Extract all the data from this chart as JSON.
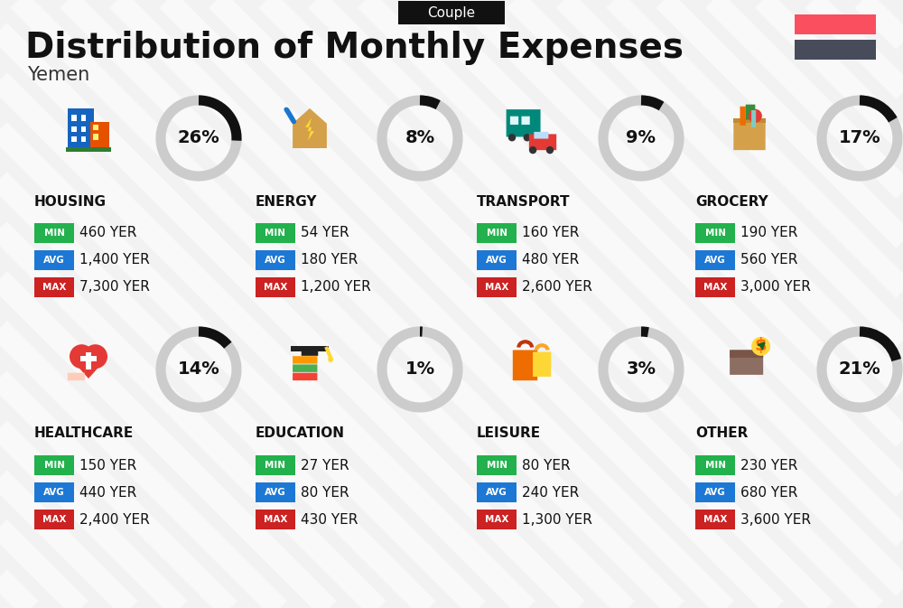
{
  "title": "Distribution of Monthly Expenses",
  "subtitle": "Yemen",
  "tag": "Couple",
  "bg_color": "#f2f2f2",
  "flag_color1": "#f94f5e",
  "flag_color2": "#474b5a",
  "categories": [
    {
      "name": "HOUSING",
      "pct": 26,
      "min_val": "460 YER",
      "avg_val": "1,400 YER",
      "max_val": "7,300 YER",
      "row": 0,
      "col": 0
    },
    {
      "name": "ENERGY",
      "pct": 8,
      "min_val": "54 YER",
      "avg_val": "180 YER",
      "max_val": "1,200 YER",
      "row": 0,
      "col": 1
    },
    {
      "name": "TRANSPORT",
      "pct": 9,
      "min_val": "160 YER",
      "avg_val": "480 YER",
      "max_val": "2,600 YER",
      "row": 0,
      "col": 2
    },
    {
      "name": "GROCERY",
      "pct": 17,
      "min_val": "190 YER",
      "avg_val": "560 YER",
      "max_val": "3,000 YER",
      "row": 0,
      "col": 3
    },
    {
      "name": "HEALTHCARE",
      "pct": 14,
      "min_val": "150 YER",
      "avg_val": "440 YER",
      "max_val": "2,400 YER",
      "row": 1,
      "col": 0
    },
    {
      "name": "EDUCATION",
      "pct": 1,
      "min_val": "27 YER",
      "avg_val": "80 YER",
      "max_val": "430 YER",
      "row": 1,
      "col": 1
    },
    {
      "name": "LEISURE",
      "pct": 3,
      "min_val": "80 YER",
      "avg_val": "240 YER",
      "max_val": "1,300 YER",
      "row": 1,
      "col": 2
    },
    {
      "name": "OTHER",
      "pct": 21,
      "min_val": "230 YER",
      "avg_val": "680 YER",
      "max_val": "3,600 YER",
      "row": 1,
      "col": 3
    }
  ],
  "min_color": "#22b14c",
  "avg_color": "#1c78d4",
  "max_color": "#cc2222",
  "donut_dark": "#111111",
  "donut_light": "#cccccc",
  "stripe_color": "#e8e8e8",
  "tag_bg": "#111111",
  "title_color": "#111111",
  "subtitle_color": "#333333",
  "cat_name_color": "#111111",
  "val_color": "#111111"
}
